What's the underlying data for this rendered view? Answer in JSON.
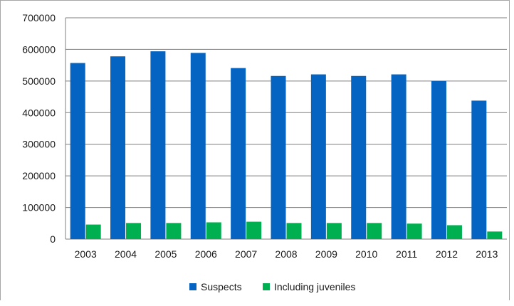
{
  "chart_data": {
    "type": "bar",
    "categories": [
      "2003",
      "2004",
      "2005",
      "2006",
      "2007",
      "2008",
      "2009",
      "2010",
      "2011",
      "2012",
      "2013"
    ],
    "series": [
      {
        "name": "Suspects",
        "color": "#0563c1",
        "values": [
          557000,
          578000,
          594000,
          589000,
          541000,
          516000,
          521000,
          516000,
          521000,
          500000,
          438000
        ]
      },
      {
        "name": "Including juveniles",
        "color": "#00b050",
        "values": [
          46000,
          51000,
          51000,
          53000,
          55000,
          51000,
          51000,
          51000,
          49000,
          44000,
          24000
        ]
      }
    ],
    "y_ticks": [
      "0",
      "100000",
      "200000",
      "300000",
      "400000",
      "500000",
      "600000",
      "700000"
    ],
    "ylim": [
      0,
      700000
    ],
    "grid": true,
    "plot_background": "#ffffff",
    "legend_position": "bottom"
  }
}
